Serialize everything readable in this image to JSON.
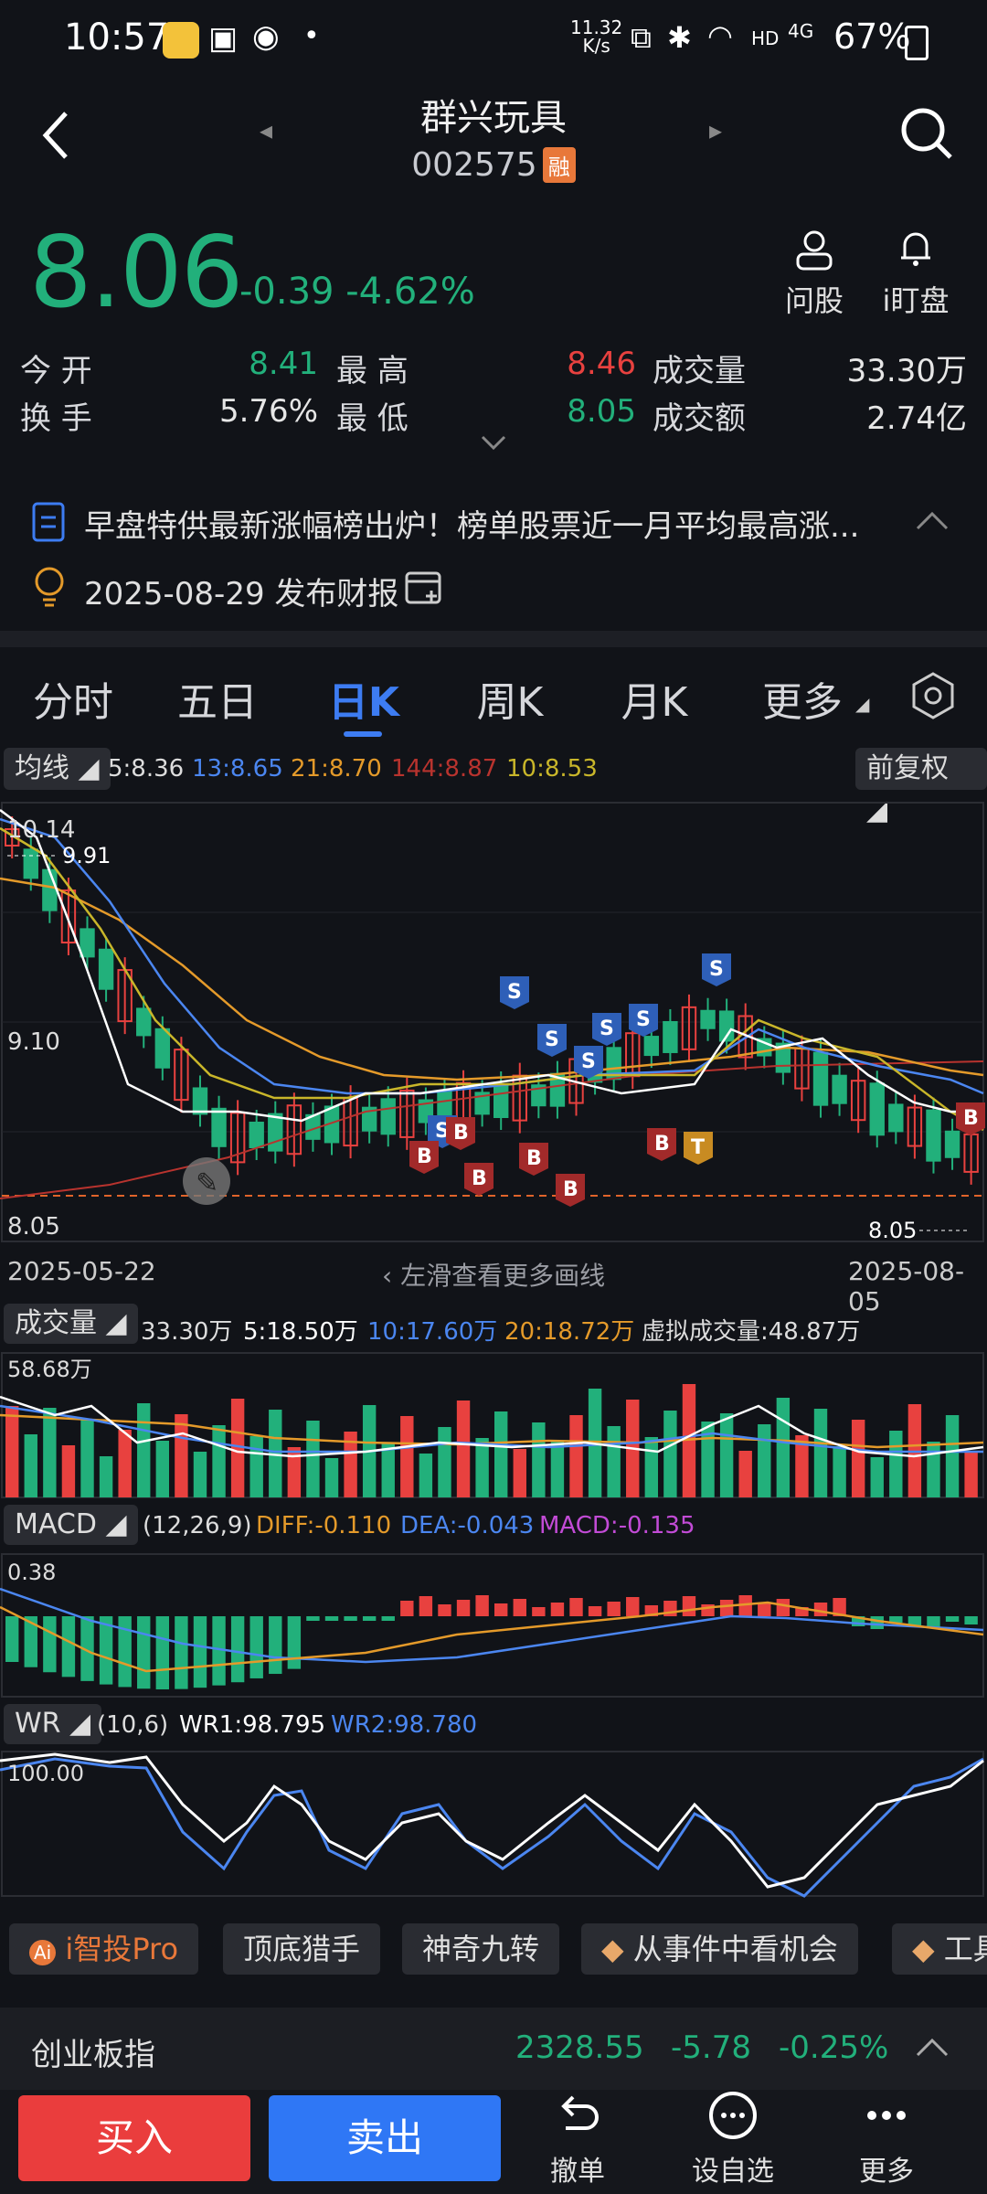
{
  "status_bar": {
    "time": "10:57",
    "net_speed_top": "11.32",
    "net_speed_bottom": "K/s",
    "hd": "HD",
    "signal": "4G",
    "battery": "67%"
  },
  "header": {
    "title": "群兴玩具",
    "code": "002575",
    "badge": "融"
  },
  "quote": {
    "price": "8.06",
    "change": "-0.39",
    "change_pct": "-4.62%",
    "ask_label": "问股",
    "watch_label": "i盯盘",
    "fields": [
      {
        "label": "今 开",
        "value": "8.41",
        "color": "green"
      },
      {
        "label": "最 高",
        "value": "8.46",
        "color": "red"
      },
      {
        "label": "成交量",
        "value": "33.30万",
        "color": "white"
      },
      {
        "label": "换 手",
        "value": "5.76%",
        "color": "white"
      },
      {
        "label": "最 低",
        "value": "8.05",
        "color": "green"
      },
      {
        "label": "成交额",
        "value": "2.74亿",
        "color": "white"
      }
    ]
  },
  "news": {
    "headline": "早盘特供最新涨幅榜出炉！榜单股票近一月平均最高涨...",
    "event": "2025-08-29 发布财报"
  },
  "tabs": [
    "分时",
    "五日",
    "日K",
    "周K",
    "月K",
    "更多"
  ],
  "active_tab": 2,
  "ma_bar": {
    "label": "均线",
    "ma5": "5:8.36",
    "ma13": "13:8.65",
    "ma21": "21:8.70",
    "ma144": "144:8.87",
    "ma10": "10:8.53",
    "adjust": "前复权"
  },
  "kchart": {
    "high_label": "10.14",
    "mark_high": "9.91",
    "mid_label": "9.10",
    "low_label": "8.05",
    "mark_low": "8.05",
    "date_start": "2025-05-22",
    "date_end": "2025-08-05",
    "hint": "左滑查看更多画线"
  },
  "volume_bar": {
    "label": "成交量",
    "v": "33.30万",
    "v5": "5:18.50万",
    "v10": "10:17.60万",
    "v20": "20:18.72万",
    "virtual": "虚拟成交量:48.87万",
    "max_label": "58.68万"
  },
  "macd_bar": {
    "label": "MACD",
    "params": "(12,26,9)",
    "diff": "DIFF:-0.110",
    "dea": "DEA:-0.043",
    "macd": "MACD:-0.135",
    "max_label": "0.38"
  },
  "wr_bar": {
    "label": "WR",
    "params": "(10,6)",
    "wr1": "WR1:98.795",
    "wr2": "WR2:98.780",
    "max_label": "100.00"
  },
  "tools": [
    "i智投Pro",
    "顶底猎手",
    "神奇九转",
    "从事件中看机会",
    "工具"
  ],
  "index_bar": {
    "name": "创业板指",
    "value": "2328.55",
    "change": "-5.78",
    "pct": "-0.25%"
  },
  "bottom_nav": {
    "buy": "买入",
    "sell": "卖出",
    "cancel": "撤单",
    "watch": "设自选",
    "more": "更多"
  },
  "colors": {
    "up": "#e8413f",
    "down": "#22b07b",
    "accent": "#3d7cf2",
    "orange": "#e49a2a"
  }
}
